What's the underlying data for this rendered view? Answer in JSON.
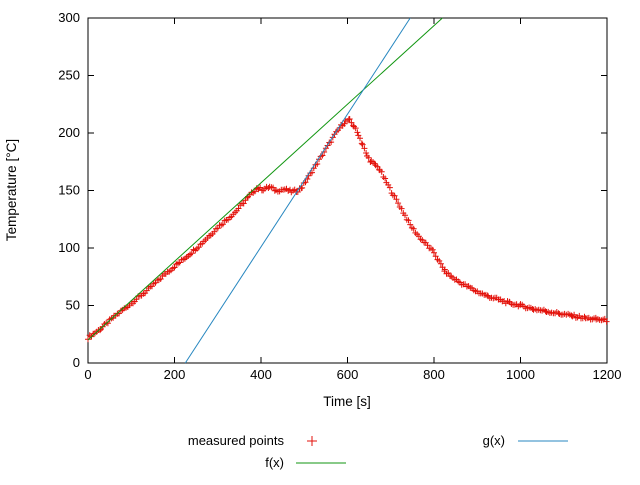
{
  "chart_data": {
    "type": "scatter",
    "title": "",
    "xlabel": "Time [s]",
    "ylabel": "Temperature [°C]",
    "xlim": [
      0,
      1200
    ],
    "ylim": [
      0,
      300
    ],
    "xticks": [
      0,
      200,
      400,
      600,
      800,
      1000,
      1200
    ],
    "yticks": [
      0,
      50,
      100,
      150,
      200,
      250,
      300
    ],
    "grid": false,
    "background": "#ffffff",
    "axis_color": "#000000",
    "legend_position": "below-plot, two columns",
    "series": [
      {
        "name": "measured points",
        "style": "points",
        "marker": "plus",
        "color": "#e3120b",
        "step": 4,
        "noise_amp": 1.3,
        "anchors": [
          [
            0,
            22
          ],
          [
            30,
            30
          ],
          [
            60,
            40
          ],
          [
            100,
            52
          ],
          [
            140,
            64
          ],
          [
            180,
            78
          ],
          [
            220,
            90
          ],
          [
            260,
            103
          ],
          [
            300,
            118
          ],
          [
            340,
            131
          ],
          [
            370,
            144
          ],
          [
            390,
            152
          ],
          [
            405,
            151
          ],
          [
            420,
            153
          ],
          [
            435,
            150
          ],
          [
            455,
            151
          ],
          [
            470,
            149
          ],
          [
            485,
            150
          ],
          [
            495,
            153
          ],
          [
            510,
            162
          ],
          [
            530,
            174
          ],
          [
            550,
            186
          ],
          [
            570,
            198
          ],
          [
            585,
            206
          ],
          [
            595,
            210
          ],
          [
            605,
            211
          ],
          [
            615,
            206
          ],
          [
            625,
            199
          ],
          [
            635,
            190
          ],
          [
            645,
            180
          ],
          [
            655,
            175
          ],
          [
            665,
            172
          ],
          [
            675,
            168
          ],
          [
            690,
            157
          ],
          [
            705,
            147
          ],
          [
            725,
            134
          ],
          [
            745,
            120
          ],
          [
            765,
            110
          ],
          [
            785,
            102
          ],
          [
            800,
            96
          ],
          [
            812,
            88
          ],
          [
            825,
            80
          ],
          [
            840,
            75
          ],
          [
            860,
            70
          ],
          [
            880,
            66
          ],
          [
            900,
            62
          ],
          [
            925,
            58
          ],
          [
            950,
            55
          ],
          [
            975,
            52
          ],
          [
            1000,
            50
          ],
          [
            1030,
            47
          ],
          [
            1060,
            45
          ],
          [
            1090,
            43
          ],
          [
            1120,
            41
          ],
          [
            1150,
            39
          ],
          [
            1175,
            38
          ],
          [
            1200,
            37
          ]
        ]
      },
      {
        "name": "f(x)",
        "style": "line",
        "color": "#109610",
        "slope": 0.3417,
        "intercept": 20
      },
      {
        "name": "g(x)",
        "style": "line",
        "color": "#2787c0",
        "slope": 0.5769,
        "intercept": -129.8
      }
    ],
    "legend": [
      {
        "label": "measured points",
        "series": 0
      },
      {
        "label": "f(x)",
        "series": 1
      },
      {
        "label": "g(x)",
        "series": 2
      }
    ]
  }
}
